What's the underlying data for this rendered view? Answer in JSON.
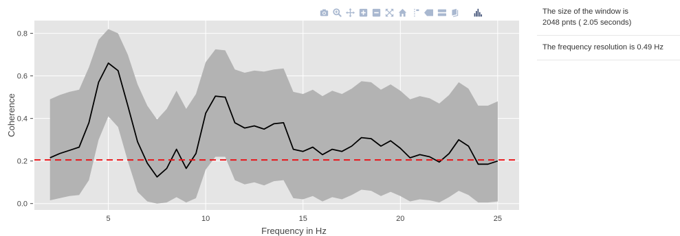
{
  "toolbar": {
    "buttons": [
      {
        "name": "camera-icon"
      },
      {
        "name": "zoom-icon"
      },
      {
        "name": "pan-icon"
      },
      {
        "name": "zoom-in-icon"
      },
      {
        "name": "zoom-out-icon"
      },
      {
        "name": "autoscale-icon"
      },
      {
        "name": "home-icon"
      },
      {
        "name": "spike-lines-icon"
      },
      {
        "name": "hover-closest-icon"
      },
      {
        "name": "hover-compare-icon"
      },
      {
        "name": "edit-icon"
      },
      {
        "name": "plotly-logo-icon"
      }
    ],
    "color": "#a9b8d0",
    "logo_color": "#3f4f75"
  },
  "info": {
    "window_text": "The size of the window is 2048 pnts ( 2.05 seconds)",
    "resolution_text": "The frequency resolution is 0.49 Hz"
  },
  "chart_data": {
    "type": "line",
    "xlabel": "Frequency in Hz",
    "ylabel": "Coherence",
    "xlim": [
      1.2,
      26.1
    ],
    "ylim": [
      -0.03,
      0.86
    ],
    "xticks": [
      5,
      10,
      15,
      20,
      25
    ],
    "yticks": [
      0,
      0.2,
      0.4,
      0.6,
      0.8
    ],
    "xtick_labels": [
      "5",
      "10",
      "15",
      "20",
      "25"
    ],
    "ytick_labels": [
      "0.0",
      "0.2",
      "0.4",
      "0.6",
      "0.8"
    ],
    "grid": true,
    "x": [
      2.0,
      2.5,
      3.0,
      3.5,
      4.0,
      4.5,
      5.0,
      5.5,
      6.0,
      6.5,
      7.0,
      7.5,
      8.0,
      8.5,
      9.0,
      9.5,
      10.0,
      10.5,
      11.0,
      11.5,
      12.0,
      12.5,
      13.0,
      13.5,
      14.0,
      14.5,
      15.0,
      15.5,
      16.0,
      16.5,
      17.0,
      17.5,
      18.0,
      18.5,
      19.0,
      19.5,
      20.0,
      20.5,
      21.0,
      21.5,
      22.0,
      22.5,
      23.0,
      23.5,
      24.0,
      24.5,
      25.0
    ],
    "mean": [
      0.215,
      0.235,
      0.25,
      0.265,
      0.38,
      0.57,
      0.66,
      0.625,
      0.46,
      0.29,
      0.19,
      0.125,
      0.165,
      0.255,
      0.165,
      0.235,
      0.425,
      0.505,
      0.5,
      0.38,
      0.355,
      0.365,
      0.35,
      0.375,
      0.38,
      0.255,
      0.245,
      0.265,
      0.23,
      0.255,
      0.245,
      0.27,
      0.31,
      0.305,
      0.27,
      0.295,
      0.26,
      0.215,
      0.23,
      0.22,
      0.195,
      0.235,
      0.3,
      0.27,
      0.185,
      0.185,
      0.2
    ],
    "upper": [
      0.49,
      0.51,
      0.525,
      0.535,
      0.64,
      0.77,
      0.82,
      0.8,
      0.7,
      0.56,
      0.46,
      0.395,
      0.445,
      0.53,
      0.445,
      0.515,
      0.665,
      0.725,
      0.72,
      0.63,
      0.615,
      0.625,
      0.62,
      0.63,
      0.635,
      0.525,
      0.515,
      0.535,
      0.505,
      0.53,
      0.515,
      0.54,
      0.575,
      0.57,
      0.535,
      0.56,
      0.53,
      0.49,
      0.505,
      0.495,
      0.47,
      0.51,
      0.57,
      0.54,
      0.46,
      0.46,
      0.48
    ],
    "lower": [
      0.015,
      0.025,
      0.035,
      0.04,
      0.11,
      0.3,
      0.41,
      0.36,
      0.2,
      0.055,
      0.01,
      0.0,
      0.005,
      0.03,
      0.005,
      0.025,
      0.16,
      0.22,
      0.22,
      0.11,
      0.09,
      0.1,
      0.085,
      0.105,
      0.11,
      0.025,
      0.02,
      0.035,
      0.01,
      0.03,
      0.02,
      0.04,
      0.065,
      0.06,
      0.035,
      0.055,
      0.035,
      0.01,
      0.02,
      0.015,
      0.005,
      0.03,
      0.06,
      0.04,
      0.005,
      0.005,
      0.01
    ],
    "threshold": 0.205,
    "colors": {
      "plot_bg": "#e5e5e5",
      "band": "#b3b3b3",
      "line": "#000000",
      "threshold": "#e8161a",
      "grid": "#ffffff",
      "text": "#444444"
    }
  }
}
